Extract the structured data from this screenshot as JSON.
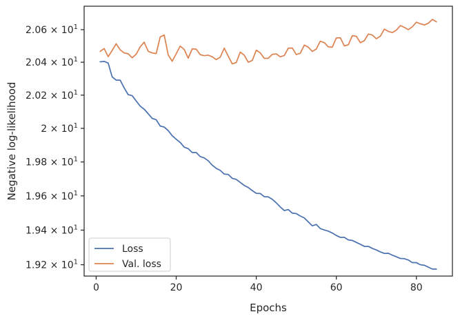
{
  "chart_data": {
    "type": "line",
    "title": "",
    "xlabel": "Epochs",
    "ylabel": "Negative log-likelihood",
    "yscale": "log",
    "grid": false,
    "legend_position": "lower-left",
    "xlim": [
      -3,
      89
    ],
    "ylim": [
      19.135,
      20.745
    ],
    "x_ticks": [
      {
        "value": 0,
        "label": "0"
      },
      {
        "value": 20,
        "label": "20"
      },
      {
        "value": 40,
        "label": "40"
      },
      {
        "value": 60,
        "label": "60"
      },
      {
        "value": 80,
        "label": "80"
      }
    ],
    "y_ticks": [
      {
        "value": 19.2,
        "mantissa": "1.92",
        "base": "10",
        "exponent": "1"
      },
      {
        "value": 19.4,
        "mantissa": "1.94",
        "base": "10",
        "exponent": "1"
      },
      {
        "value": 19.6,
        "mantissa": "1.96",
        "base": "10",
        "exponent": "1"
      },
      {
        "value": 19.8,
        "mantissa": "1.98",
        "base": "10",
        "exponent": "1"
      },
      {
        "value": 20.0,
        "mantissa": "2",
        "base": "10",
        "exponent": "1"
      },
      {
        "value": 20.2,
        "mantissa": "2.02",
        "base": "10",
        "exponent": "1"
      },
      {
        "value": 20.4,
        "mantissa": "2.04",
        "base": "10",
        "exponent": "1"
      },
      {
        "value": 20.6,
        "mantissa": "2.06",
        "base": "10",
        "exponent": "1"
      }
    ],
    "x": [
      1,
      2,
      3,
      4,
      5,
      6,
      7,
      8,
      9,
      10,
      11,
      12,
      13,
      14,
      15,
      16,
      17,
      18,
      19,
      20,
      21,
      22,
      23,
      24,
      25,
      26,
      27,
      28,
      29,
      30,
      31,
      32,
      33,
      34,
      35,
      36,
      37,
      38,
      39,
      40,
      41,
      42,
      43,
      44,
      45,
      46,
      47,
      48,
      49,
      50,
      51,
      52,
      53,
      54,
      55,
      56,
      57,
      58,
      59,
      60,
      61,
      62,
      63,
      64,
      65,
      66,
      67,
      68,
      69,
      70,
      71,
      72,
      73,
      74,
      75,
      76,
      77,
      78,
      79,
      80,
      81,
      82,
      83,
      84,
      85
    ],
    "series": [
      {
        "name": "Loss",
        "color": "#4c72b0",
        "values": [
          20.403,
          20.405,
          20.395,
          20.311,
          20.291,
          20.291,
          20.244,
          20.203,
          20.197,
          20.165,
          20.134,
          20.115,
          20.088,
          20.06,
          20.052,
          20.014,
          20.008,
          19.987,
          19.956,
          19.935,
          19.916,
          19.888,
          19.879,
          19.856,
          19.856,
          19.832,
          19.824,
          19.807,
          19.781,
          19.762,
          19.75,
          19.728,
          19.726,
          19.703,
          19.697,
          19.679,
          19.661,
          19.649,
          19.631,
          19.615,
          19.614,
          19.595,
          19.594,
          19.58,
          19.559,
          19.535,
          19.514,
          19.52,
          19.499,
          19.496,
          19.482,
          19.471,
          19.448,
          19.425,
          19.433,
          19.409,
          19.401,
          19.394,
          19.383,
          19.369,
          19.358,
          19.358,
          19.343,
          19.34,
          19.329,
          19.318,
          19.306,
          19.306,
          19.294,
          19.285,
          19.274,
          19.265,
          19.266,
          19.255,
          19.246,
          19.236,
          19.235,
          19.227,
          19.212,
          19.212,
          19.2,
          19.197,
          19.186,
          19.175,
          19.175
        ]
      },
      {
        "name": "Val. loss",
        "color": "#dd8452",
        "values": [
          20.466,
          20.484,
          20.434,
          20.472,
          20.513,
          20.476,
          20.457,
          20.452,
          20.427,
          20.449,
          20.494,
          20.523,
          20.467,
          20.457,
          20.453,
          20.555,
          20.567,
          20.445,
          20.406,
          20.452,
          20.499,
          20.478,
          20.425,
          20.482,
          20.48,
          20.446,
          20.44,
          20.443,
          20.433,
          20.416,
          20.431,
          20.486,
          20.437,
          20.39,
          20.398,
          20.462,
          20.443,
          20.4,
          20.411,
          20.474,
          20.457,
          20.424,
          20.424,
          20.448,
          20.451,
          20.433,
          20.441,
          20.486,
          20.487,
          20.447,
          20.455,
          20.505,
          20.492,
          20.466,
          20.481,
          20.529,
          20.52,
          20.494,
          20.492,
          20.549,
          20.55,
          20.5,
          20.507,
          20.563,
          20.559,
          20.52,
          20.532,
          20.573,
          20.567,
          20.544,
          20.56,
          20.603,
          20.589,
          20.582,
          20.597,
          20.625,
          20.614,
          20.6,
          20.618,
          20.646,
          20.636,
          20.629,
          20.64,
          20.663,
          20.648
        ]
      }
    ]
  }
}
